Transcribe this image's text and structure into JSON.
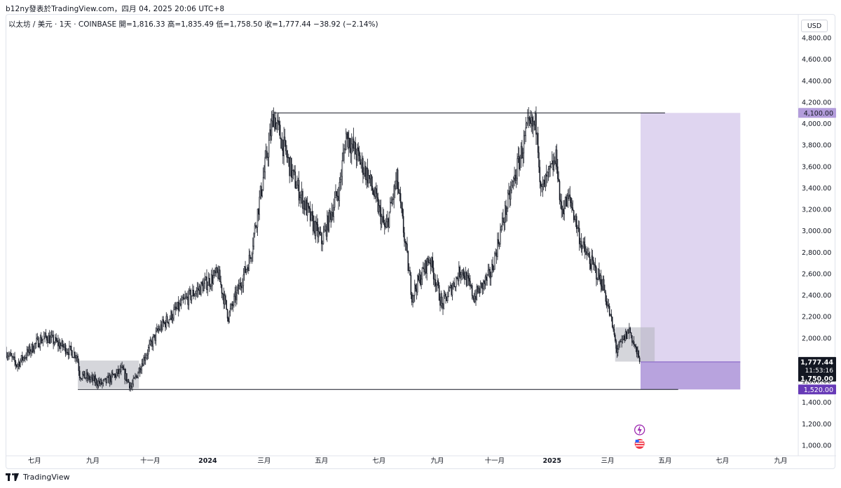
{
  "header": {
    "text": "b12ny發表於TradingView.com，四月 04, 2025 20:06 UTC+8"
  },
  "legend": {
    "text": "以太坊 / 美元 · 1天 · COINBASE  開=1,816.33  高=1,835.49  低=1,758.50  收=1,777.44  −38.92 (−2.14%)"
  },
  "currency_button": "USD",
  "footer": {
    "brand": "TradingView"
  },
  "colors": {
    "candle": "#131722",
    "purple_zone": "#7e57c2",
    "highlight_box": "#b2b5be",
    "price_label_dark": "#131722",
    "price_label_purple": "#673ab7",
    "price_label_light_purple": "#b39ddb"
  },
  "chart_data": {
    "type": "candlestick",
    "symbol": "以太坊 / 美元",
    "timeframe": "1天",
    "exchange": "COINBASE",
    "ohlc_last": {
      "open": 1816.33,
      "high": 1835.49,
      "low": 1758.5,
      "close": 1777.44,
      "change": -38.92,
      "change_pct": -2.14
    },
    "y_axis": {
      "ticks": [
        "1,000.00",
        "1,200.00",
        "1,400.00",
        "1,600.00",
        "1,800.00",
        "2,000.00",
        "2,200.00",
        "2,400.00",
        "2,600.00",
        "2,800.00",
        "3,000.00",
        "3,200.00",
        "3,400.00",
        "3,600.00",
        "3,800.00",
        "4,000.00",
        "4,200.00",
        "4,400.00",
        "4,600.00",
        "4,800.00"
      ],
      "range": [
        960,
        4840
      ]
    },
    "x_axis": {
      "ticks": [
        "七月",
        "九月",
        "十一月",
        "2024",
        "三月",
        "五月",
        "七月",
        "九月",
        "十一月",
        "2025",
        "三月",
        "五月",
        "七月",
        "九月"
      ],
      "range": [
        "2023-06-01",
        "2025-09-30"
      ]
    },
    "key_points": [
      {
        "date": "2023-06-01",
        "price": 1870
      },
      {
        "date": "2023-06-12",
        "price": 1750
      },
      {
        "date": "2023-07-05",
        "price": 1970
      },
      {
        "date": "2023-07-14",
        "price": 2010
      },
      {
        "date": "2023-08-15",
        "price": 1840
      },
      {
        "date": "2023-08-18",
        "price": 1660
      },
      {
        "date": "2023-09-11",
        "price": 1570
      },
      {
        "date": "2023-10-02",
        "price": 1700
      },
      {
        "date": "2023-10-12",
        "price": 1540
      },
      {
        "date": "2023-10-24",
        "price": 1790
      },
      {
        "date": "2023-11-10",
        "price": 2080
      },
      {
        "date": "2023-12-09",
        "price": 2360
      },
      {
        "date": "2024-01-12",
        "price": 2600
      },
      {
        "date": "2024-01-23",
        "price": 2200
      },
      {
        "date": "2024-02-15",
        "price": 2750
      },
      {
        "date": "2024-03-11",
        "price": 4080
      },
      {
        "date": "2024-04-01",
        "price": 3500
      },
      {
        "date": "2024-04-20",
        "price": 3100
      },
      {
        "date": "2024-05-01",
        "price": 2900
      },
      {
        "date": "2024-05-20",
        "price": 3400
      },
      {
        "date": "2024-05-27",
        "price": 3900
      },
      {
        "date": "2024-06-20",
        "price": 3500
      },
      {
        "date": "2024-07-08",
        "price": 3000
      },
      {
        "date": "2024-07-20",
        "price": 3480
      },
      {
        "date": "2024-08-05",
        "price": 2400
      },
      {
        "date": "2024-08-24",
        "price": 2750
      },
      {
        "date": "2024-09-06",
        "price": 2300
      },
      {
        "date": "2024-09-27",
        "price": 2650
      },
      {
        "date": "2024-10-10",
        "price": 2380
      },
      {
        "date": "2024-10-28",
        "price": 2600
      },
      {
        "date": "2024-11-10",
        "price": 3100
      },
      {
        "date": "2024-12-06",
        "price": 3950
      },
      {
        "date": "2024-12-16",
        "price": 4000
      },
      {
        "date": "2024-12-20",
        "price": 3350
      },
      {
        "date": "2025-01-06",
        "price": 3680
      },
      {
        "date": "2025-01-10",
        "price": 3200
      },
      {
        "date": "2025-01-20",
        "price": 3300
      },
      {
        "date": "2025-02-02",
        "price": 2850
      },
      {
        "date": "2025-02-24",
        "price": 2500
      },
      {
        "date": "2025-03-05",
        "price": 2150
      },
      {
        "date": "2025-03-11",
        "price": 1880
      },
      {
        "date": "2025-03-24",
        "price": 2080
      },
      {
        "date": "2025-04-04",
        "price": 1777
      }
    ],
    "drawings": {
      "resistance_line": {
        "price": 4100,
        "from": "2024-03-12",
        "to": "2025-05-01"
      },
      "support_line": {
        "price": 1520,
        "from": "2023-08-16",
        "to": "2025-05-15"
      },
      "range_box_left": {
        "from": "2023-08-16",
        "to": "2023-10-20",
        "low": 1530,
        "high": 1790
      },
      "range_box_right": {
        "from": "2025-03-09",
        "to": "2025-04-20",
        "low": 1780,
        "high": 2100
      },
      "position_tool": {
        "from": "2025-04-05",
        "to": "2025-07-20",
        "entry": 1777.44,
        "target": 4100,
        "stop": 1520
      }
    },
    "price_labels": {
      "target": "4,100.00",
      "last": "1,777.44",
      "countdown": "11:53:16",
      "level": "1,750.00",
      "stop": "1,520.00"
    }
  }
}
